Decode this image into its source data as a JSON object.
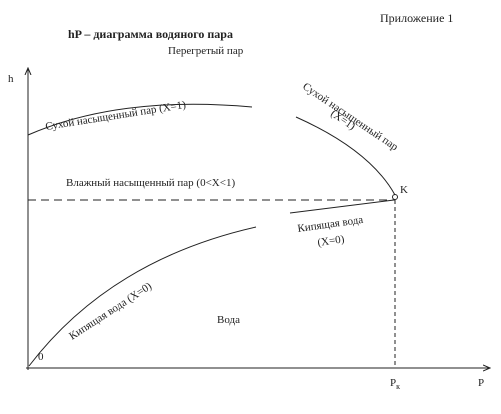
{
  "header": {
    "appendix": "Приложение 1",
    "title": "hP – диаграмма водяного пара"
  },
  "axes": {
    "y": "h",
    "x": "P",
    "origin": "0",
    "pk_main": "P",
    "pk_sub": "к"
  },
  "regions": {
    "superheated": "Перегретый пар",
    "wet": "Влажный насыщенный пар (0<X<1)",
    "water": "Вода"
  },
  "curves": {
    "dry_left": "Сухой насыщенный пар (X=1)",
    "dry_right_1": "Сухой насыщенный пар",
    "dry_right_2": "(X=1)",
    "boil_left": "Кипящая вода (X=0)",
    "boil_right_1": "Кипящая вода",
    "boil_right_2": "(X=0)"
  },
  "point": "K"
}
